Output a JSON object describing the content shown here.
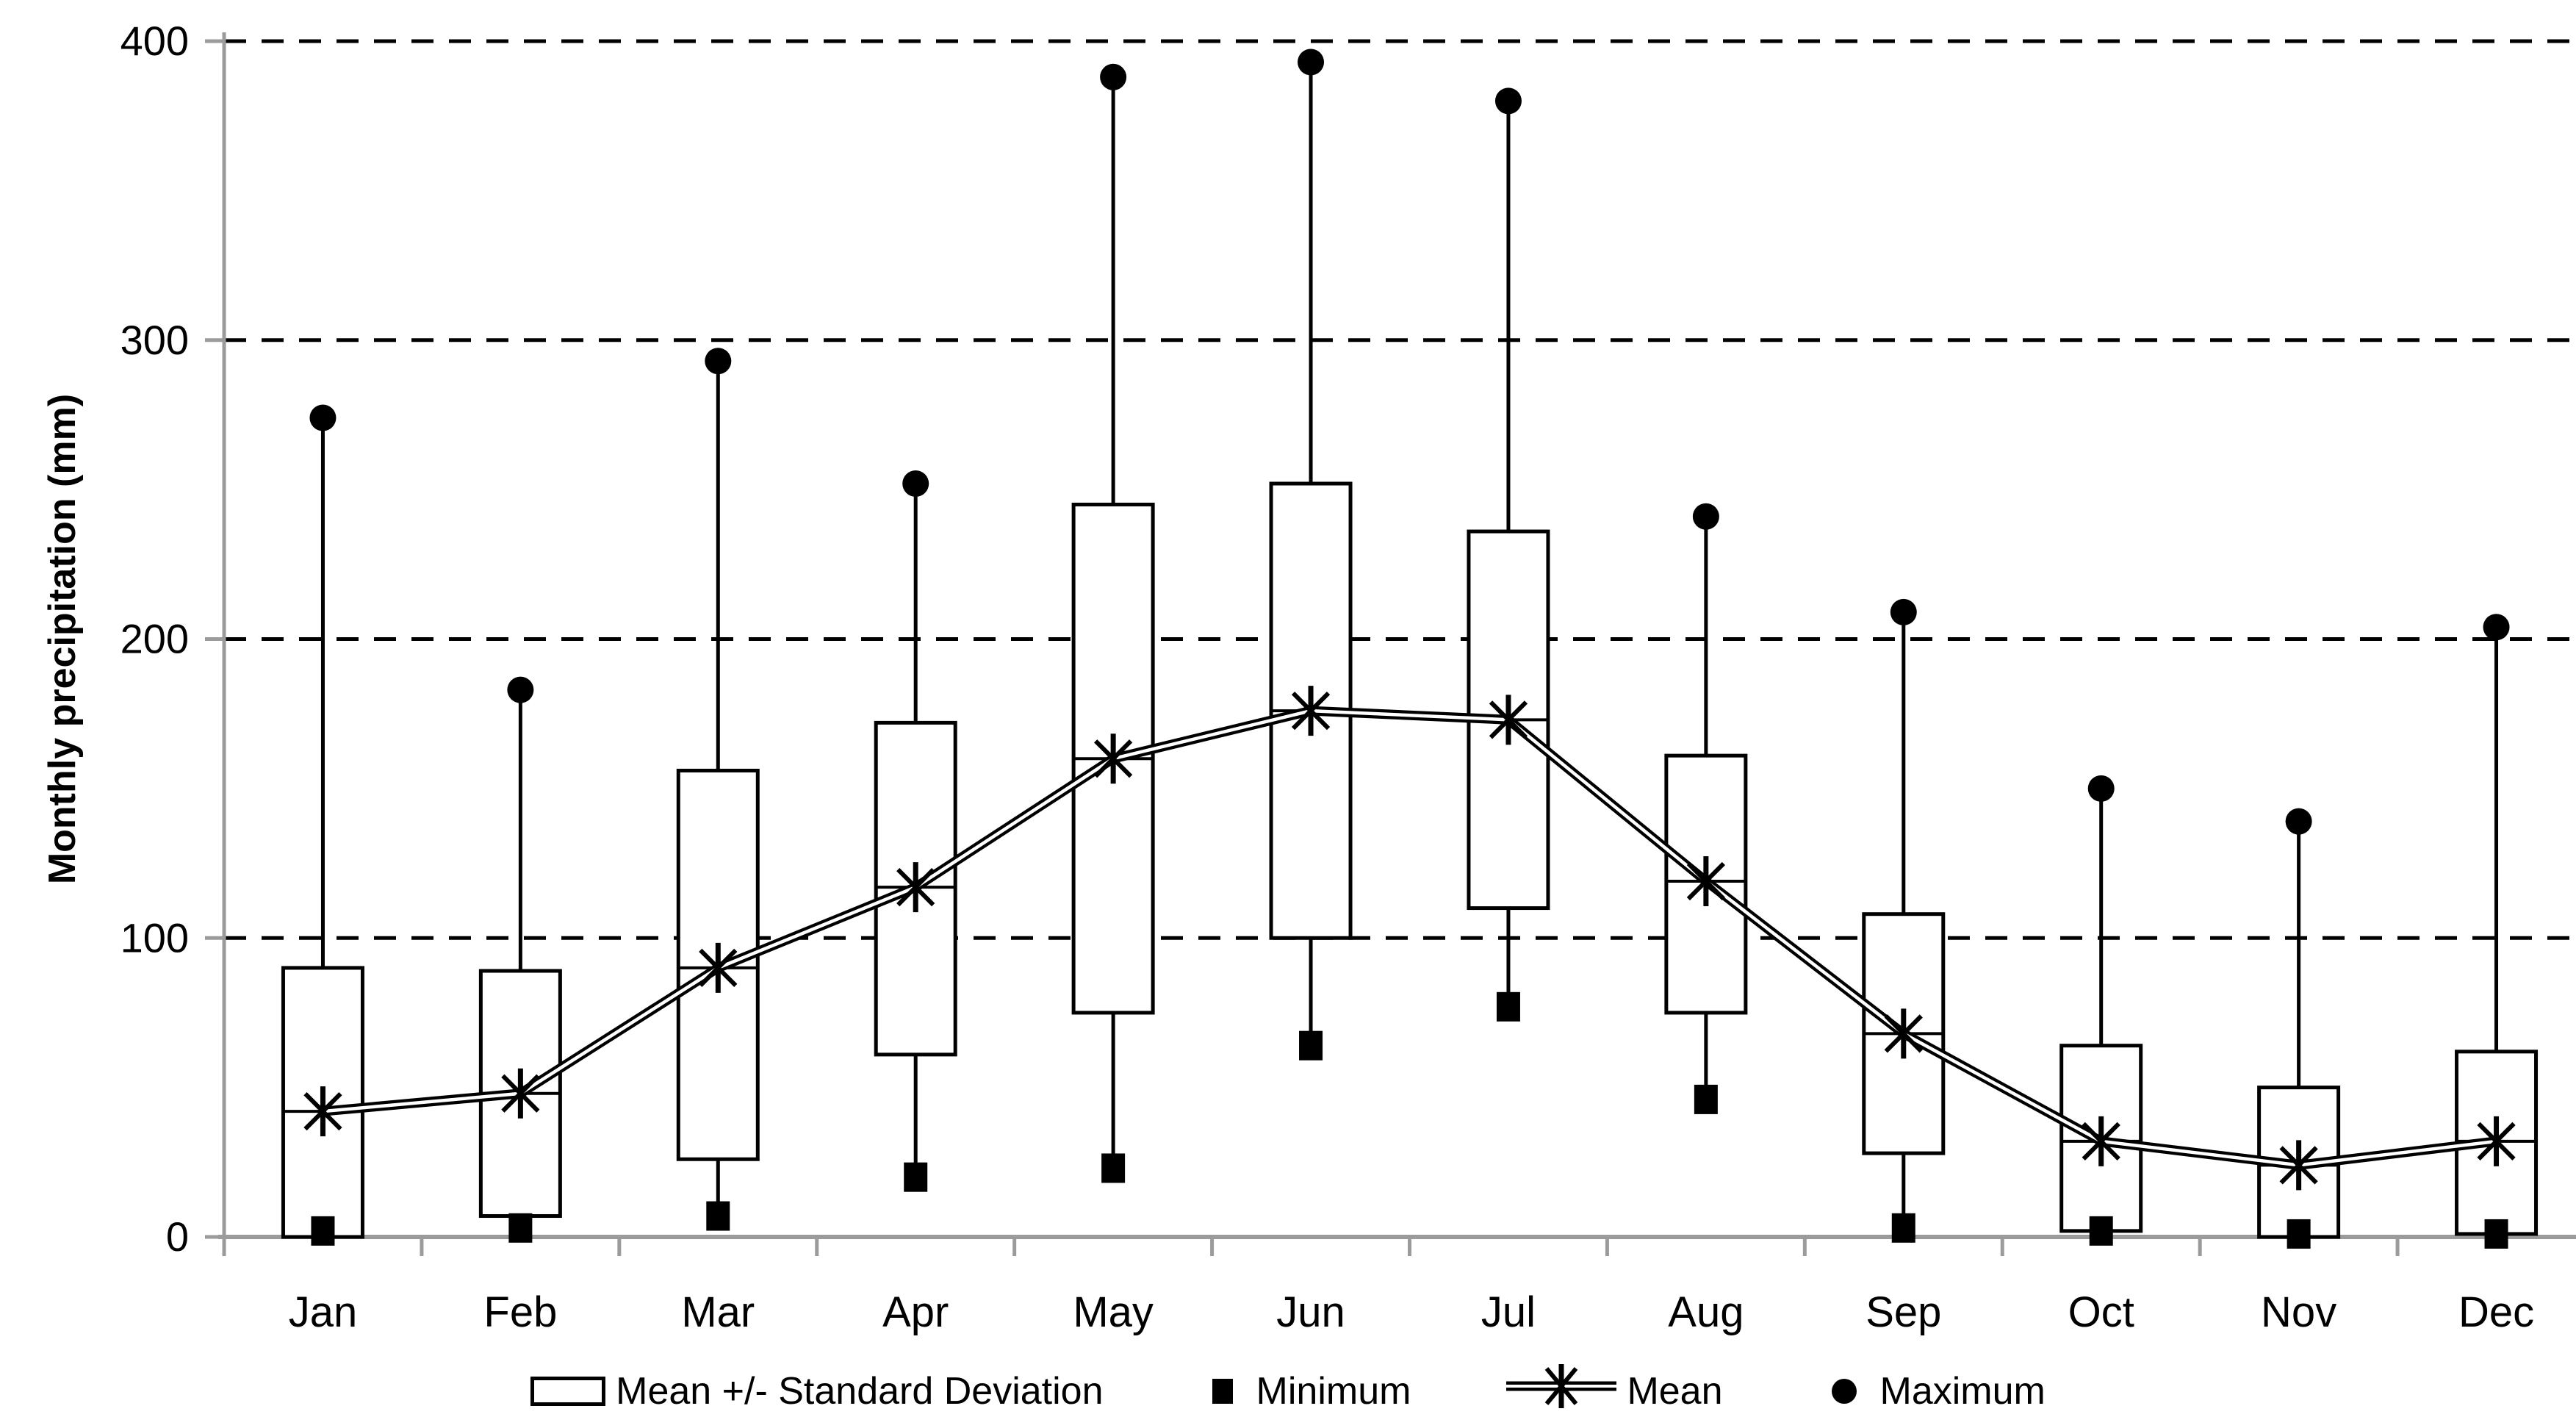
{
  "chart_data": {
    "type": "box",
    "title": "",
    "xlabel": "",
    "ylabel": "Monthly precipitation (mm)",
    "ylim": [
      0,
      400
    ],
    "yticks": [
      0,
      100,
      200,
      300,
      400
    ],
    "grid": "horizontal dashed gridlines at 100, 200, 300, 400; solid gray baseline at 0",
    "legend_position": "bottom",
    "categories": [
      "Jan",
      "Feb",
      "Mar",
      "Apr",
      "May",
      "Jun",
      "Jul",
      "Aug",
      "Sep",
      "Oct",
      "Nov",
      "Dec"
    ],
    "series": [
      {
        "name": "Mean +/- Standard Deviation",
        "type": "box",
        "high": [
          90,
          89,
          156,
          172,
          245,
          252,
          236,
          161,
          108,
          64,
          50,
          62
        ],
        "low": [
          0,
          7,
          26,
          61,
          75,
          100,
          110,
          75,
          28,
          2,
          0,
          1
        ]
      },
      {
        "name": "Minimum",
        "type": "point-square",
        "values": [
          2,
          3,
          7,
          20,
          23,
          64,
          77,
          46,
          3,
          2,
          1,
          1
        ]
      },
      {
        "name": "Mean",
        "type": "line-star",
        "values": [
          42,
          48,
          90,
          117,
          160,
          176,
          173,
          119,
          68,
          32,
          24,
          32
        ]
      },
      {
        "name": "Maximum",
        "type": "point-circle",
        "values": [
          274,
          183,
          293,
          252,
          388,
          393,
          380,
          241,
          209,
          150,
          139,
          204
        ]
      }
    ]
  },
  "legend": {
    "items": [
      {
        "icon": "box-outline-icon",
        "label": "Mean +/- Standard Deviation"
      },
      {
        "icon": "filled-square-icon",
        "label": "Minimum"
      },
      {
        "icon": "star-line-icon",
        "label": "Mean"
      },
      {
        "icon": "filled-circle-icon",
        "label": "Maximum"
      }
    ]
  },
  "colors": {
    "background": "#ffffff",
    "ink": "#000000",
    "axis_gray": "#9b9b9b"
  }
}
